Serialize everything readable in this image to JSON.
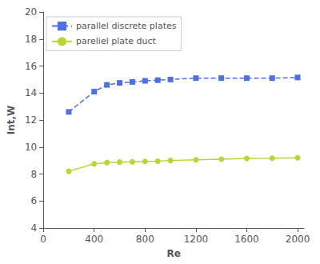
{
  "chart_data": {
    "type": "line",
    "xlabel": "Re",
    "ylabel": "Int,W",
    "series": [
      {
        "name": "parallel discrete plates",
        "x": [
          200,
          400,
          500,
          600,
          700,
          800,
          900,
          1000,
          1200,
          1400,
          1600,
          1800,
          2000
        ],
        "values": [
          12.6,
          14.1,
          14.6,
          14.75,
          14.82,
          14.9,
          14.95,
          15.0,
          15.1,
          15.1,
          15.1,
          15.1,
          15.15
        ],
        "marker": "square",
        "line_style": "dashed"
      },
      {
        "name": "pareliel plate duct",
        "x": [
          200,
          400,
          500,
          600,
          700,
          800,
          900,
          1000,
          1200,
          1400,
          1600,
          1800,
          2000
        ],
        "values": [
          8.2,
          8.75,
          8.85,
          8.88,
          8.9,
          8.93,
          8.95,
          9.0,
          9.05,
          9.1,
          9.15,
          9.17,
          9.2
        ],
        "marker": "circle",
        "line_style": "solid"
      }
    ],
    "xlim": [
      0,
      2050
    ],
    "ylim": [
      4,
      20
    ],
    "xticks": [
      0,
      400,
      800,
      1200,
      1600,
      2000
    ],
    "yticks": [
      4,
      6,
      8,
      10,
      12,
      14,
      16,
      18,
      20
    ],
    "legend": "upper left",
    "grid": false
  }
}
